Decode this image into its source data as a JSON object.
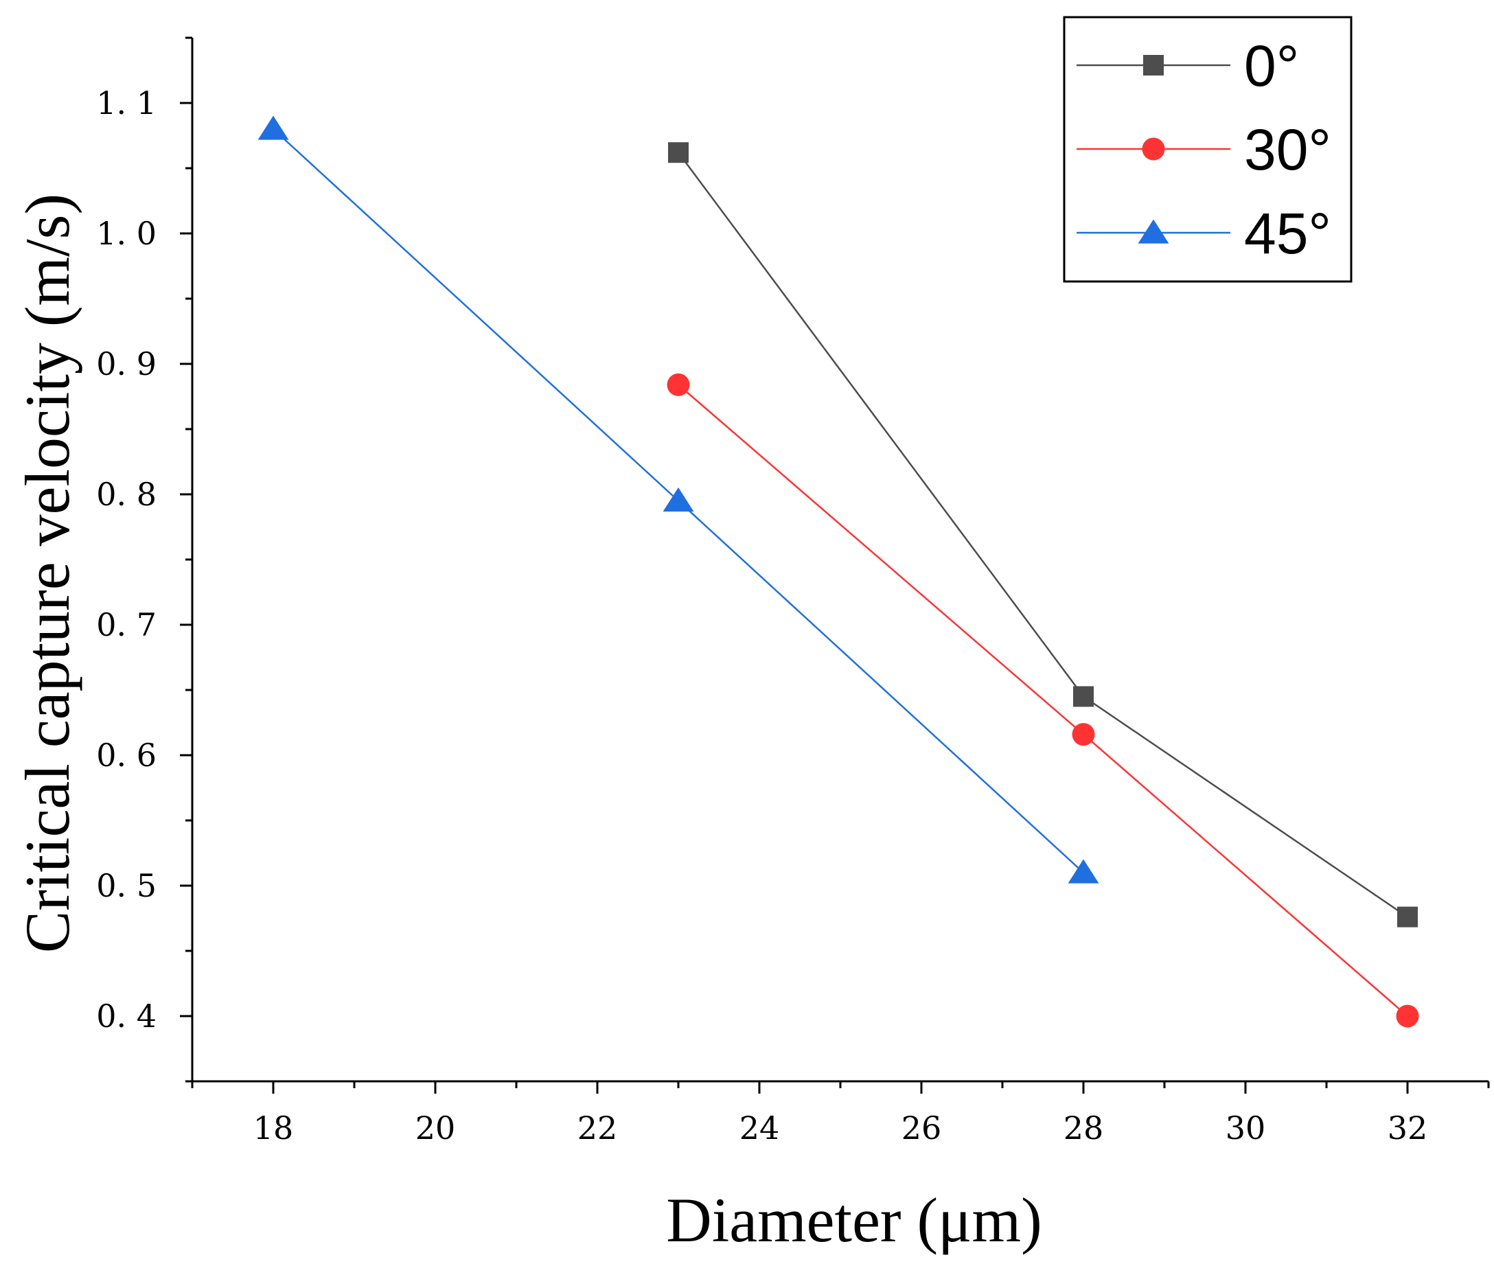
{
  "chart_data": {
    "type": "line",
    "title": "",
    "xlabel": "Diameter (μm)",
    "ylabel": "Critical capture velocity (m/s)",
    "xlim": [
      17,
      33
    ],
    "ylim": [
      0.35,
      1.15
    ],
    "xticks": [
      18,
      20,
      22,
      24,
      26,
      28,
      30,
      32
    ],
    "xtick_labels": [
      "18",
      "20",
      "22",
      "24",
      "26",
      "28",
      "30",
      "32"
    ],
    "yticks": [
      0.4,
      0.5,
      0.6,
      0.7,
      0.8,
      0.9,
      1.0,
      1.1
    ],
    "ytick_labels": [
      "0. 4",
      "0. 5",
      "0. 6",
      "0. 7",
      "0. 8",
      "0. 9",
      "1. 0",
      "1. 1"
    ],
    "grid": false,
    "legend_position": "top-right",
    "series": [
      {
        "name": "0°",
        "marker": "square",
        "color": "#4d4d4d",
        "x": [
          23,
          28,
          32
        ],
        "values": [
          1.062,
          0.645,
          0.476
        ]
      },
      {
        "name": "30°",
        "marker": "circle",
        "color": "#ff3333",
        "x": [
          23,
          28,
          32
        ],
        "values": [
          0.884,
          0.616,
          0.4
        ]
      },
      {
        "name": "45°",
        "marker": "triangle",
        "color": "#1f6fe0",
        "x": [
          18,
          23,
          28
        ],
        "values": [
          1.08,
          0.795,
          0.51
        ]
      }
    ]
  }
}
